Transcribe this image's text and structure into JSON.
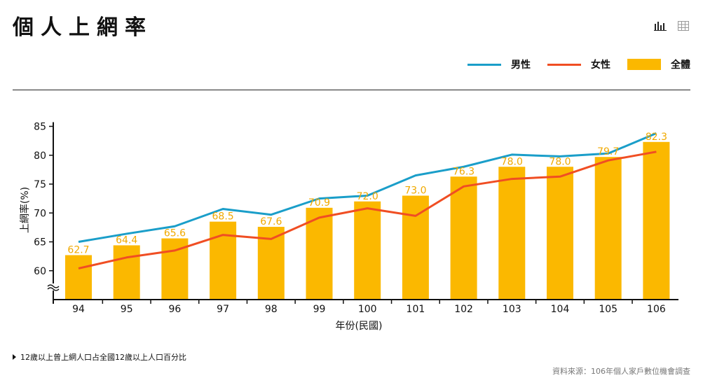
{
  "header": {
    "title": "個人上網率"
  },
  "toolbar": {
    "chart_view_icon": "bar-chart-icon",
    "table_view_icon": "table-icon"
  },
  "legend": {
    "items": [
      {
        "label": "男性",
        "type": "line",
        "color": "#1a9ec9"
      },
      {
        "label": "女性",
        "type": "line",
        "color": "#f04e23"
      },
      {
        "label": "全體",
        "type": "bar",
        "color": "#fbb800"
      }
    ]
  },
  "chart_data": {
    "type": "bar",
    "x_label": "年份(民國)",
    "y_label": "上網率(%)",
    "categories": [
      "94",
      "95",
      "96",
      "97",
      "98",
      "99",
      "100",
      "101",
      "102",
      "103",
      "104",
      "105",
      "106"
    ],
    "y_ticks": [
      60,
      65,
      70,
      75,
      80,
      85
    ],
    "ylim": [
      55,
      85
    ],
    "y_axis_break": true,
    "series": [
      {
        "name": "全體",
        "type": "bar",
        "color": "#fbb800",
        "label_color": "#f0a900",
        "values": [
          62.7,
          64.4,
          65.6,
          68.5,
          67.6,
          70.9,
          72.0,
          73.0,
          76.3,
          78.0,
          78.0,
          79.7,
          82.3
        ]
      },
      {
        "name": "男性",
        "type": "line",
        "color": "#1a9ec9",
        "values": [
          65.0,
          66.4,
          67.7,
          70.7,
          69.7,
          72.5,
          73.0,
          76.5,
          78.0,
          80.1,
          79.8,
          80.3,
          83.8
        ]
      },
      {
        "name": "女性",
        "type": "line",
        "color": "#f04e23",
        "values": [
          60.4,
          62.3,
          63.5,
          66.2,
          65.5,
          69.2,
          70.8,
          69.5,
          74.6,
          75.9,
          76.3,
          79.1,
          80.6
        ]
      }
    ],
    "grid": false
  },
  "footer": {
    "note": "12歲以上曾上網人口占全國12歲以上人口百分比",
    "source": "資料來源：106年個人家戶數位機會調查"
  }
}
